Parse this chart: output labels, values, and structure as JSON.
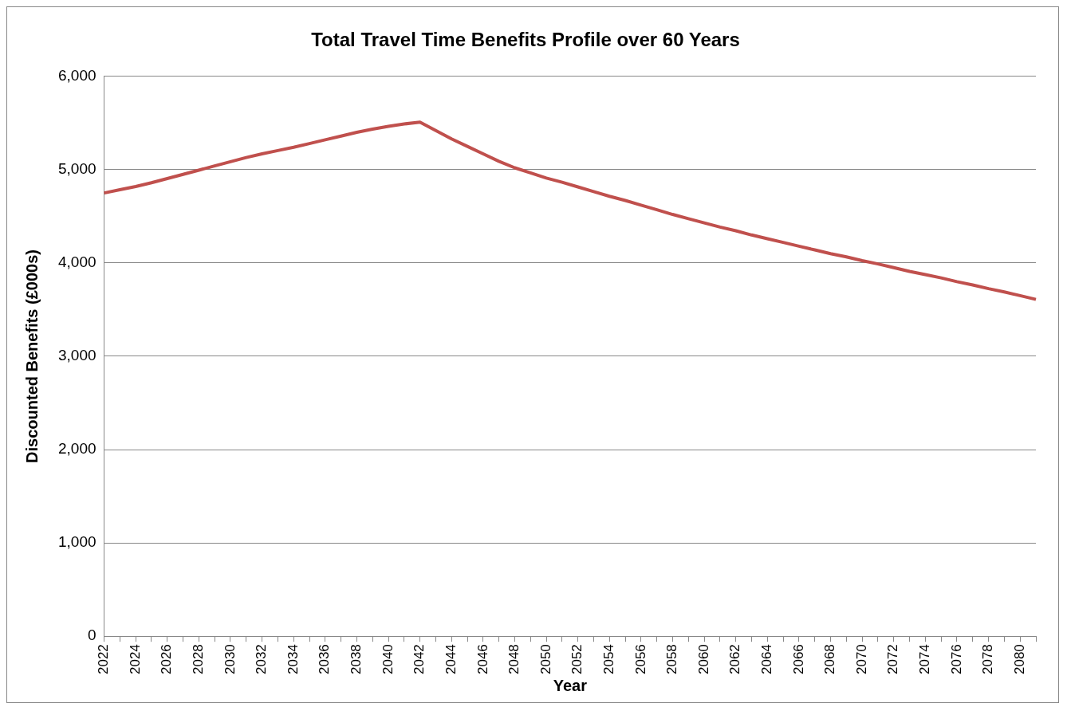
{
  "chart_data": {
    "type": "line",
    "title": "Total Travel Time Benefits Profile over 60 Years",
    "xlabel": "Year",
    "ylabel": "Discounted Benefits (£000s)",
    "categories": [
      "2022",
      null,
      "2024",
      null,
      "2026",
      null,
      "2028",
      null,
      "2030",
      null,
      "2032",
      null,
      "2034",
      null,
      "2036",
      null,
      "2038",
      null,
      "2040",
      null,
      "2042",
      null,
      "2044",
      null,
      "2046",
      null,
      "2048",
      null,
      "2050",
      null,
      "2052",
      null,
      "2054",
      null,
      "2056",
      null,
      "2058",
      null,
      "2060",
      null,
      "2062",
      null,
      "2064",
      null,
      "2066",
      null,
      "2068",
      null,
      "2070",
      null,
      "2072",
      null,
      "2074",
      null,
      "2076",
      null,
      "2078",
      null,
      "2080",
      null
    ],
    "series": [
      {
        "color": "#c0504d",
        "values": [
          4750,
          4785,
          4820,
          4860,
          4905,
          4950,
          4995,
          5040,
          5085,
          5130,
          5170,
          5205,
          5240,
          5280,
          5320,
          5360,
          5400,
          5435,
          5465,
          5490,
          5510,
          5420,
          5330,
          5250,
          5170,
          5090,
          5020,
          4965,
          4910,
          4865,
          4815,
          4765,
          4715,
          4670,
          4620,
          4570,
          4520,
          4475,
          4430,
          4385,
          4345,
          4300,
          4260,
          4220,
          4180,
          4140,
          4100,
          4065,
          4025,
          3990,
          3950,
          3910,
          3875,
          3840,
          3800,
          3765,
          3725,
          3690,
          3650,
          3610
        ]
      }
    ],
    "ylim": [
      0,
      6000
    ],
    "yticks": [
      0,
      {
        "value": 1000,
        "label": "1,000"
      },
      {
        "value": 2000,
        "label": "2,000"
      },
      {
        "value": 3000,
        "label": "3,000"
      },
      {
        "value": 4000,
        "label": "4,000"
      },
      {
        "value": 5000,
        "label": "5,000"
      },
      {
        "value": 6000,
        "label": "6,000"
      }
    ],
    "grid": "y",
    "legend": false,
    "marker": "none",
    "line_style": "solid"
  }
}
